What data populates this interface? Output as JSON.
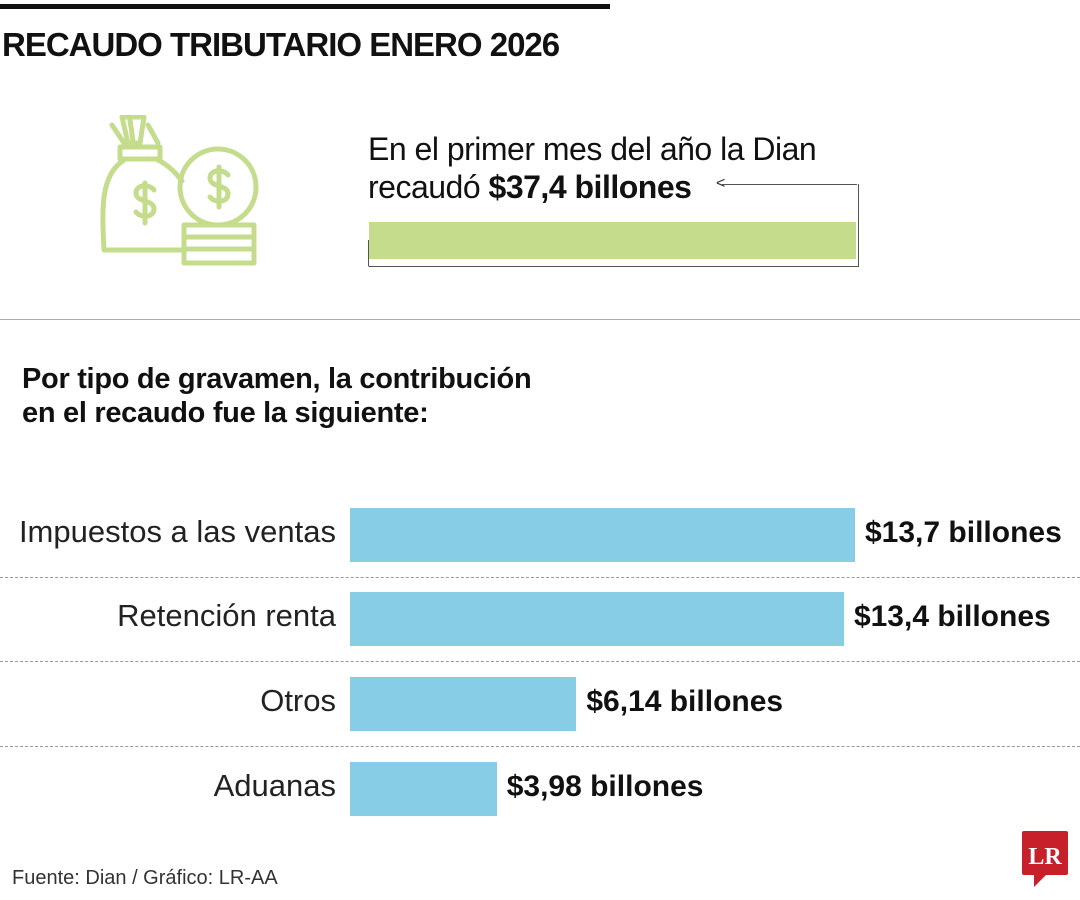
{
  "header": {
    "title": "RECAUDO TRIBUTARIO ENERO 2026"
  },
  "intro": {
    "line1": "En el primer mes del año la Dian",
    "line2_prefix": "recaudó ",
    "total": "$37,4 billones",
    "icon": "money-bag-coins-icon",
    "total_bar_color": "#c5dc8d"
  },
  "subtitle": {
    "line1": "Por tipo de gravamen, la contribución",
    "line2": "en el recaudo fue la siguiente:"
  },
  "chart_data": {
    "type": "bar",
    "orientation": "horizontal",
    "unit": "billones",
    "categories": [
      "Impuestos a las ventas",
      "Retención renta",
      "Otros",
      "Aduanas"
    ],
    "values": [
      13.7,
      13.4,
      6.14,
      3.98
    ],
    "data_labels": [
      "$13,7 billones",
      "$13,4 billones",
      "$6,14 billones",
      "$3,98 billones"
    ],
    "bar_color": "#87cde6",
    "grid": false
  },
  "footer": {
    "source": "Fuente: Dian / Gráfico: LR-AA",
    "logo": "LR",
    "logo_color": "#c8202a"
  }
}
